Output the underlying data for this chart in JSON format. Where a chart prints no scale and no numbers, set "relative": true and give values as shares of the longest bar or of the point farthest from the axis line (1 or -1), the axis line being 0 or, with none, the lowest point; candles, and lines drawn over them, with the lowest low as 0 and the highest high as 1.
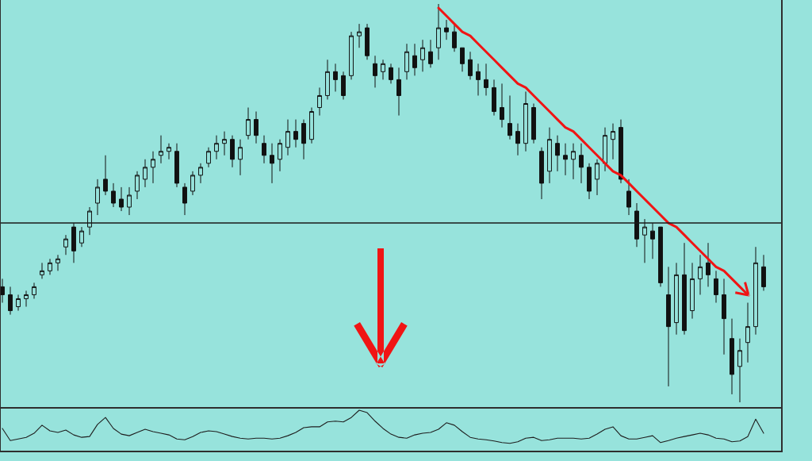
{
  "chart_data": [
    {
      "type": "candlestick",
      "relative": true,
      "color": "#111111",
      "categories": [
        null,
        null,
        null,
        null,
        null,
        null,
        null,
        null,
        null,
        null,
        null,
        null,
        null,
        null,
        null,
        null,
        null,
        null,
        null,
        null,
        null,
        null,
        null,
        null,
        null,
        null,
        null,
        null,
        null,
        null,
        null,
        null,
        null,
        null,
        null,
        null,
        null,
        null,
        null,
        null,
        null,
        null,
        null,
        null,
        null,
        null,
        null,
        null,
        null,
        null,
        null,
        null,
        null,
        null,
        null,
        null,
        null,
        null,
        null,
        null,
        null,
        null,
        null,
        null,
        null,
        null,
        null,
        null,
        null,
        null,
        null,
        null,
        null,
        null,
        null,
        null,
        null,
        null,
        null,
        null,
        null,
        null,
        null,
        null,
        null,
        null,
        null,
        null,
        null,
        null,
        null,
        null,
        null,
        null,
        null,
        null,
        null
      ],
      "ohlc": [
        [
          0.29,
          0.31,
          0.25,
          0.27
        ],
        [
          0.27,
          0.29,
          0.22,
          0.23
        ],
        [
          0.24,
          0.27,
          0.23,
          0.26
        ],
        [
          0.26,
          0.28,
          0.24,
          0.27
        ],
        [
          0.27,
          0.3,
          0.26,
          0.29
        ],
        [
          0.32,
          0.35,
          0.31,
          0.33
        ],
        [
          0.33,
          0.36,
          0.32,
          0.35
        ],
        [
          0.35,
          0.37,
          0.33,
          0.36
        ],
        [
          0.39,
          0.42,
          0.37,
          0.41
        ],
        [
          0.44,
          0.45,
          0.35,
          0.38
        ],
        [
          0.4,
          0.44,
          0.39,
          0.43
        ],
        [
          0.44,
          0.49,
          0.42,
          0.48
        ],
        [
          0.5,
          0.56,
          0.47,
          0.54
        ],
        [
          0.56,
          0.62,
          0.52,
          0.53
        ],
        [
          0.53,
          0.55,
          0.49,
          0.5
        ],
        [
          0.51,
          0.54,
          0.48,
          0.49
        ],
        [
          0.49,
          0.54,
          0.47,
          0.52
        ],
        [
          0.53,
          0.58,
          0.51,
          0.57
        ],
        [
          0.56,
          0.61,
          0.54,
          0.59
        ],
        [
          0.59,
          0.63,
          0.55,
          0.61
        ],
        [
          0.62,
          0.67,
          0.6,
          0.63
        ],
        [
          0.63,
          0.65,
          0.61,
          0.64
        ],
        [
          0.63,
          0.65,
          0.54,
          0.55
        ],
        [
          0.54,
          0.55,
          0.47,
          0.5
        ],
        [
          0.53,
          0.58,
          0.52,
          0.57
        ],
        [
          0.57,
          0.6,
          0.55,
          0.59
        ],
        [
          0.6,
          0.64,
          0.59,
          0.63
        ],
        [
          0.63,
          0.67,
          0.61,
          0.65
        ],
        [
          0.65,
          0.68,
          0.62,
          0.66
        ],
        [
          0.66,
          0.67,
          0.59,
          0.61
        ],
        [
          0.61,
          0.66,
          0.57,
          0.64
        ],
        [
          0.67,
          0.74,
          0.66,
          0.71
        ],
        [
          0.71,
          0.73,
          0.65,
          0.67
        ],
        [
          0.65,
          0.67,
          0.6,
          0.62
        ],
        [
          0.62,
          0.65,
          0.55,
          0.6
        ],
        [
          0.61,
          0.66,
          0.58,
          0.65
        ],
        [
          0.64,
          0.71,
          0.62,
          0.68
        ],
        [
          0.68,
          0.71,
          0.64,
          0.66
        ],
        [
          0.7,
          0.71,
          0.61,
          0.65
        ],
        [
          0.66,
          0.74,
          0.65,
          0.73
        ],
        [
          0.74,
          0.79,
          0.72,
          0.77
        ],
        [
          0.77,
          0.86,
          0.76,
          0.83
        ],
        [
          0.83,
          0.85,
          0.78,
          0.81
        ],
        [
          0.82,
          0.83,
          0.76,
          0.77
        ],
        [
          0.82,
          0.93,
          0.81,
          0.92
        ],
        [
          0.92,
          0.95,
          0.89,
          0.93
        ],
        [
          0.94,
          0.95,
          0.86,
          0.87
        ],
        [
          0.85,
          0.87,
          0.79,
          0.82
        ],
        [
          0.83,
          0.86,
          0.81,
          0.85
        ],
        [
          0.84,
          0.85,
          0.8,
          0.81
        ],
        [
          0.81,
          0.84,
          0.72,
          0.77
        ],
        [
          0.83,
          0.9,
          0.81,
          0.88
        ],
        [
          0.87,
          0.9,
          0.82,
          0.84
        ],
        [
          0.86,
          0.91,
          0.83,
          0.89
        ],
        [
          0.88,
          0.91,
          0.84,
          0.85
        ],
        [
          0.89,
          1.0,
          0.86,
          0.94
        ],
        [
          0.94,
          0.96,
          0.91,
          0.93
        ],
        [
          0.93,
          0.95,
          0.88,
          0.89
        ],
        [
          0.89,
          0.89,
          0.83,
          0.85
        ],
        [
          0.86,
          0.88,
          0.81,
          0.82
        ],
        [
          0.83,
          0.85,
          0.77,
          0.81
        ],
        [
          0.81,
          0.85,
          0.77,
          0.79
        ],
        [
          0.79,
          0.81,
          0.72,
          0.73
        ],
        [
          0.74,
          0.8,
          0.69,
          0.71
        ],
        [
          0.7,
          0.77,
          0.66,
          0.67
        ],
        [
          0.68,
          0.7,
          0.62,
          0.65
        ],
        [
          0.65,
          0.78,
          0.63,
          0.75
        ],
        [
          0.74,
          0.75,
          0.65,
          0.66
        ],
        [
          0.63,
          0.64,
          0.51,
          0.55
        ],
        [
          0.58,
          0.69,
          0.55,
          0.66
        ],
        [
          0.65,
          0.67,
          0.58,
          0.62
        ],
        [
          0.62,
          0.65,
          0.57,
          0.61
        ],
        [
          0.61,
          0.65,
          0.56,
          0.63
        ],
        [
          0.62,
          0.65,
          0.55,
          0.59
        ],
        [
          0.59,
          0.6,
          0.51,
          0.53
        ],
        [
          0.56,
          0.61,
          0.52,
          0.6
        ],
        [
          0.6,
          0.69,
          0.58,
          0.67
        ],
        [
          0.66,
          0.7,
          0.61,
          0.68
        ],
        [
          0.69,
          0.71,
          0.55,
          0.56
        ],
        [
          0.53,
          0.56,
          0.47,
          0.49
        ],
        [
          0.48,
          0.5,
          0.39,
          0.41
        ],
        [
          0.42,
          0.46,
          0.35,
          0.44
        ],
        [
          0.43,
          0.45,
          0.36,
          0.41
        ],
        [
          0.44,
          0.44,
          0.29,
          0.3
        ],
        [
          0.27,
          0.34,
          0.04,
          0.19
        ],
        [
          0.2,
          0.35,
          0.17,
          0.32
        ],
        [
          0.32,
          0.4,
          0.17,
          0.18
        ],
        [
          0.23,
          0.35,
          0.21,
          0.31
        ],
        [
          0.31,
          0.37,
          0.27,
          0.34
        ],
        [
          0.35,
          0.4,
          0.29,
          0.32
        ],
        [
          0.31,
          0.33,
          0.25,
          0.27
        ],
        [
          0.27,
          0.31,
          0.12,
          0.21
        ],
        [
          0.16,
          0.21,
          0.02,
          0.07
        ],
        [
          0.09,
          0.16,
          0.0,
          0.13
        ],
        [
          0.15,
          0.25,
          0.1,
          0.19
        ],
        [
          0.19,
          0.39,
          0.17,
          0.35
        ],
        [
          0.34,
          0.37,
          0.28,
          0.29
        ]
      ],
      "series": [
        {
          "type": "line",
          "color": "#f01414",
          "values": [
            null,
            null,
            null,
            null,
            null,
            null,
            null,
            null,
            null,
            null,
            null,
            null,
            null,
            null,
            null,
            null,
            null,
            null,
            null,
            null,
            null,
            null,
            null,
            null,
            null,
            null,
            null,
            null,
            null,
            null,
            null,
            null,
            null,
            null,
            null,
            null,
            null,
            null,
            null,
            null,
            null,
            null,
            null,
            null,
            null,
            null,
            null,
            null,
            null,
            null,
            null,
            null,
            null,
            null,
            null,
            0.99,
            0.97,
            0.95,
            0.93,
            0.92,
            0.9,
            0.88,
            0.86,
            0.84,
            0.82,
            0.8,
            0.79,
            0.77,
            0.75,
            0.73,
            0.71,
            0.69,
            0.68,
            0.66,
            0.64,
            0.62,
            0.6,
            0.58,
            0.57,
            0.55,
            0.53,
            0.51,
            0.49,
            0.47,
            0.45,
            0.44,
            0.42,
            0.4,
            0.38,
            0.36,
            0.34,
            0.33,
            0.31,
            0.29,
            0.27,
            null,
            null
          ]
        }
      ],
      "ref_lines": [
        {
          "axis": "y",
          "value": 0.45,
          "color": "#1a1a1a"
        }
      ]
    },
    {
      "type": "line",
      "relative": true,
      "color": "#1f1f1f",
      "categories": [
        null,
        null,
        null,
        null,
        null,
        null,
        null,
        null,
        null,
        null,
        null,
        null,
        null,
        null,
        null,
        null,
        null,
        null,
        null,
        null,
        null,
        null,
        null,
        null,
        null,
        null,
        null,
        null,
        null,
        null,
        null,
        null,
        null,
        null,
        null,
        null,
        null,
        null,
        null,
        null,
        null,
        null,
        null,
        null,
        null,
        null,
        null,
        null,
        null,
        null,
        null,
        null,
        null,
        null,
        null,
        null,
        null,
        null,
        null,
        null,
        null,
        null,
        null,
        null,
        null,
        null,
        null,
        null,
        null,
        null,
        null,
        null,
        null,
        null,
        null,
        null,
        null,
        null,
        null,
        null,
        null,
        null,
        null,
        null,
        null,
        null,
        null,
        null,
        null,
        null,
        null,
        null,
        null,
        null,
        null,
        null,
        null
      ],
      "values": [
        0.55,
        0.25,
        0.29,
        0.33,
        0.43,
        0.63,
        0.49,
        0.45,
        0.51,
        0.39,
        0.33,
        0.35,
        0.65,
        0.82,
        0.55,
        0.41,
        0.37,
        0.45,
        0.53,
        0.47,
        0.43,
        0.39,
        0.29,
        0.27,
        0.35,
        0.45,
        0.49,
        0.47,
        0.41,
        0.35,
        0.31,
        0.29,
        0.31,
        0.31,
        0.29,
        0.31,
        0.37,
        0.45,
        0.57,
        0.59,
        0.59,
        0.71,
        0.73,
        0.71,
        0.82,
        1.0,
        0.94,
        0.73,
        0.55,
        0.41,
        0.33,
        0.31,
        0.39,
        0.43,
        0.45,
        0.53,
        0.69,
        0.63,
        0.47,
        0.33,
        0.29,
        0.27,
        0.24,
        0.2,
        0.18,
        0.22,
        0.31,
        0.33,
        0.25,
        0.27,
        0.31,
        0.31,
        0.31,
        0.29,
        0.31,
        0.41,
        0.53,
        0.59,
        0.37,
        0.29,
        0.29,
        0.33,
        0.37,
        0.2,
        0.25,
        0.31,
        0.35,
        0.39,
        0.43,
        0.39,
        0.31,
        0.29,
        0.22,
        0.24,
        0.35,
        0.78,
        0.43
      ]
    }
  ]
}
